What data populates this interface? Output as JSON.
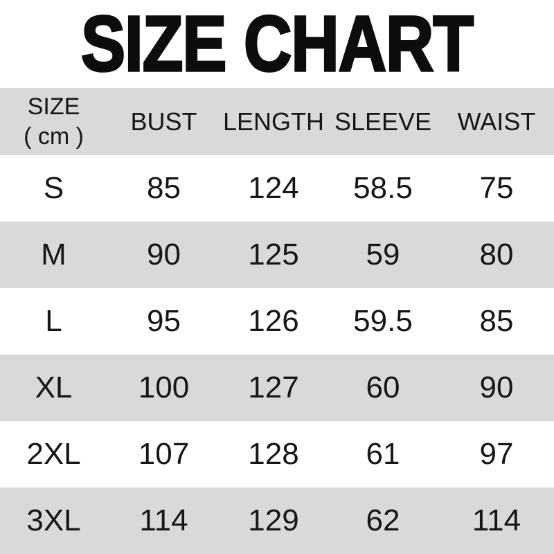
{
  "title": "SIZE CHART",
  "table": {
    "header": {
      "size_label": "SIZE",
      "size_unit": "( cm )",
      "columns": [
        "BUST",
        "LENGTH",
        "SLEEVE",
        "WAIST"
      ]
    },
    "rows": [
      {
        "size": "S",
        "bust": "85",
        "length": "124",
        "sleeve": "58.5",
        "waist": "75"
      },
      {
        "size": "M",
        "bust": "90",
        "length": "125",
        "sleeve": "59",
        "waist": "80"
      },
      {
        "size": "L",
        "bust": "95",
        "length": "126",
        "sleeve": "59.5",
        "waist": "85"
      },
      {
        "size": "XL",
        "bust": "100",
        "length": "127",
        "sleeve": "60",
        "waist": "90"
      },
      {
        "size": "2XL",
        "bust": "107",
        "length": "128",
        "sleeve": "61",
        "waist": "97"
      },
      {
        "size": "3XL",
        "bust": "114",
        "length": "129",
        "sleeve": "62",
        "waist": "114"
      }
    ]
  },
  "colors": {
    "row_alt_gray": "#d9d9d9",
    "background": "#ffffff",
    "text": "#161616",
    "title_black": "#0d0d0d"
  },
  "chart_data": {
    "type": "table",
    "title": "SIZE CHART",
    "unit": "cm",
    "columns": [
      "SIZE ( cm )",
      "BUST",
      "LENGTH",
      "SLEEVE",
      "WAIST"
    ],
    "rows": [
      [
        "S",
        85,
        124,
        58.5,
        75
      ],
      [
        "M",
        90,
        125,
        59,
        80
      ],
      [
        "L",
        95,
        126,
        59.5,
        85
      ],
      [
        "XL",
        100,
        127,
        60,
        90
      ],
      [
        "2XL",
        107,
        128,
        61,
        97
      ],
      [
        "3XL",
        114,
        129,
        62,
        114
      ]
    ],
    "layout": "header row gray, data rows alternate white/gray starting white"
  }
}
